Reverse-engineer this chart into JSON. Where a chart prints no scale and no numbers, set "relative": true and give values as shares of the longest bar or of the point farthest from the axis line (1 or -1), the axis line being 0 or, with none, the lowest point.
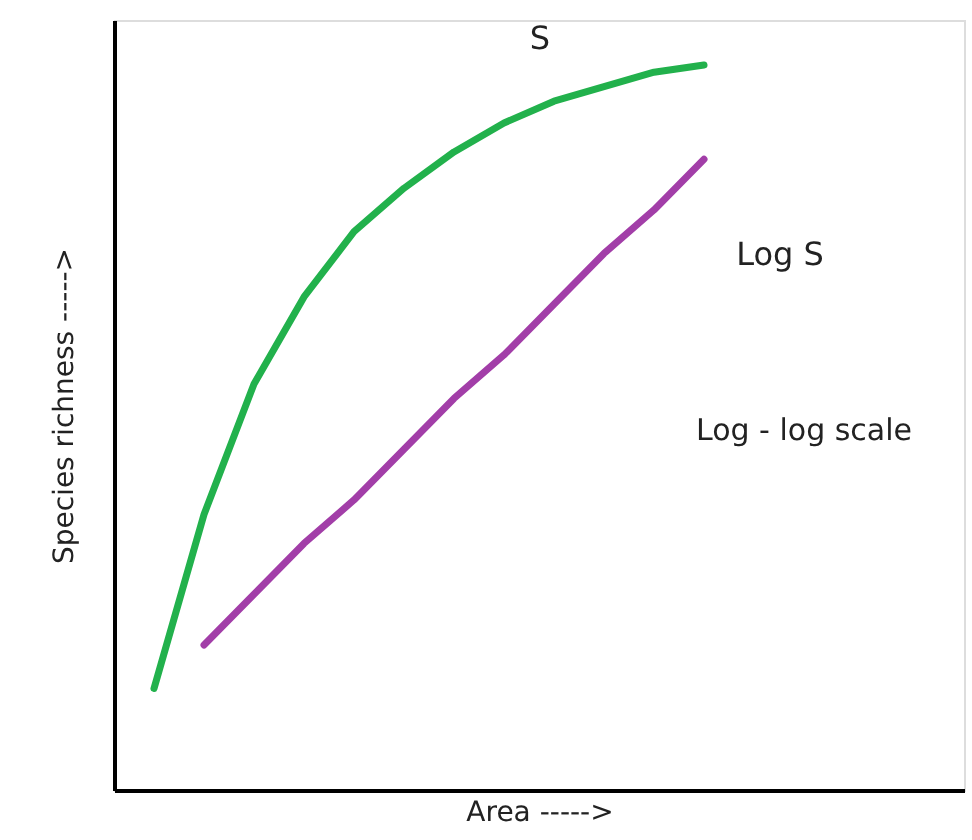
{
  "chart_data": {
    "type": "line",
    "relative": true,
    "xlabel": "Area ----->",
    "ylabel": "Species richness ----->",
    "categories": [
      null,
      null,
      null,
      null,
      null,
      null,
      null,
      null,
      null,
      null,
      null,
      null
    ],
    "series": [
      {
        "name": "S",
        "color": "#22b14c",
        "values": [
          0.14,
          0.38,
          0.56,
          0.68,
          0.77,
          0.83,
          0.88,
          0.92,
          0.95,
          0.97,
          0.99,
          1.0
        ]
      },
      {
        "name": "Log S",
        "color": "#a23ea8",
        "values": [
          null,
          0.2,
          0.27,
          0.34,
          0.4,
          0.47,
          0.54,
          0.6,
          0.67,
          0.74,
          0.8,
          0.87
        ]
      }
    ],
    "annotations": [
      "Log - log scale"
    ],
    "grid": false,
    "marker": "none",
    "line_style": "solid"
  }
}
